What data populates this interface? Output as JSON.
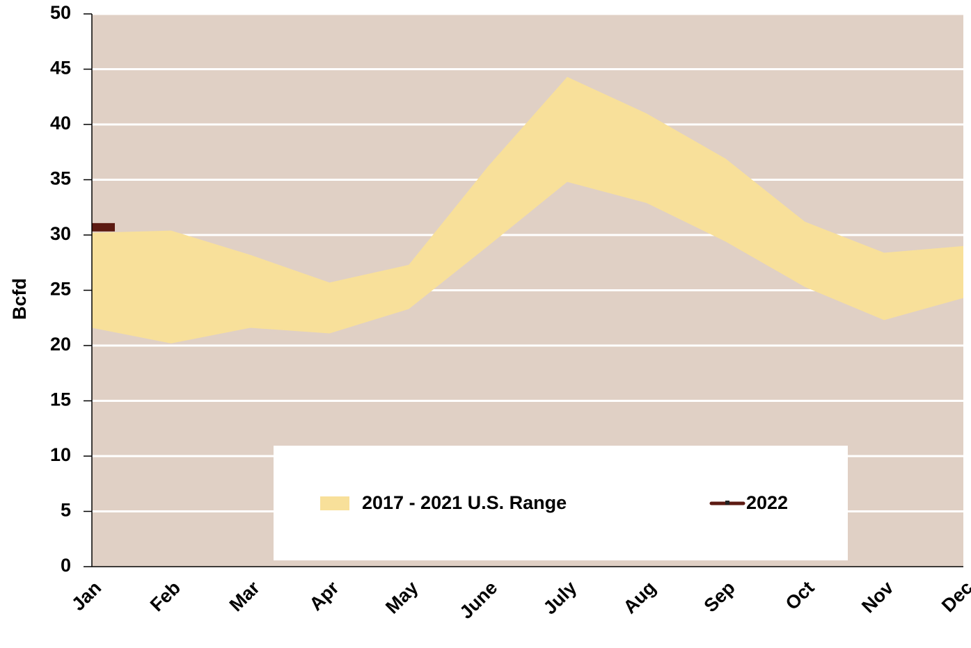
{
  "chart_data": {
    "type": "line",
    "y_label": "Bcfd",
    "categories": [
      "Jan",
      "Feb",
      "Mar",
      "Apr",
      "May",
      "June",
      "July",
      "Aug",
      "Sep",
      "Oct",
      "Nov",
      "Dec"
    ],
    "series": [
      {
        "name": "2017 - 2021 U.S. Range",
        "color": "#f8e09a",
        "upper": [
          30.2,
          30.4,
          28.2,
          25.7,
          27.3,
          36.2,
          44.3,
          41.0,
          36.9,
          31.2,
          28.4,
          29.0
        ],
        "lower": [
          21.6,
          20.2,
          21.6,
          21.1,
          23.3,
          29.0,
          34.8,
          32.9,
          29.4,
          25.3,
          22.3,
          24.3
        ]
      },
      {
        "name": "2022",
        "color": "#5c1a12",
        "values": [
          30.7,
          null,
          null,
          null,
          null,
          null,
          null,
          null,
          null,
          null,
          null,
          null
        ]
      }
    ],
    "ylim": [
      0,
      50
    ],
    "yticks": [
      0,
      5,
      10,
      15,
      20,
      25,
      30,
      35,
      40,
      45,
      50
    ],
    "grid": true,
    "plot_background": "#e0d0c5",
    "legend": "bottom"
  }
}
